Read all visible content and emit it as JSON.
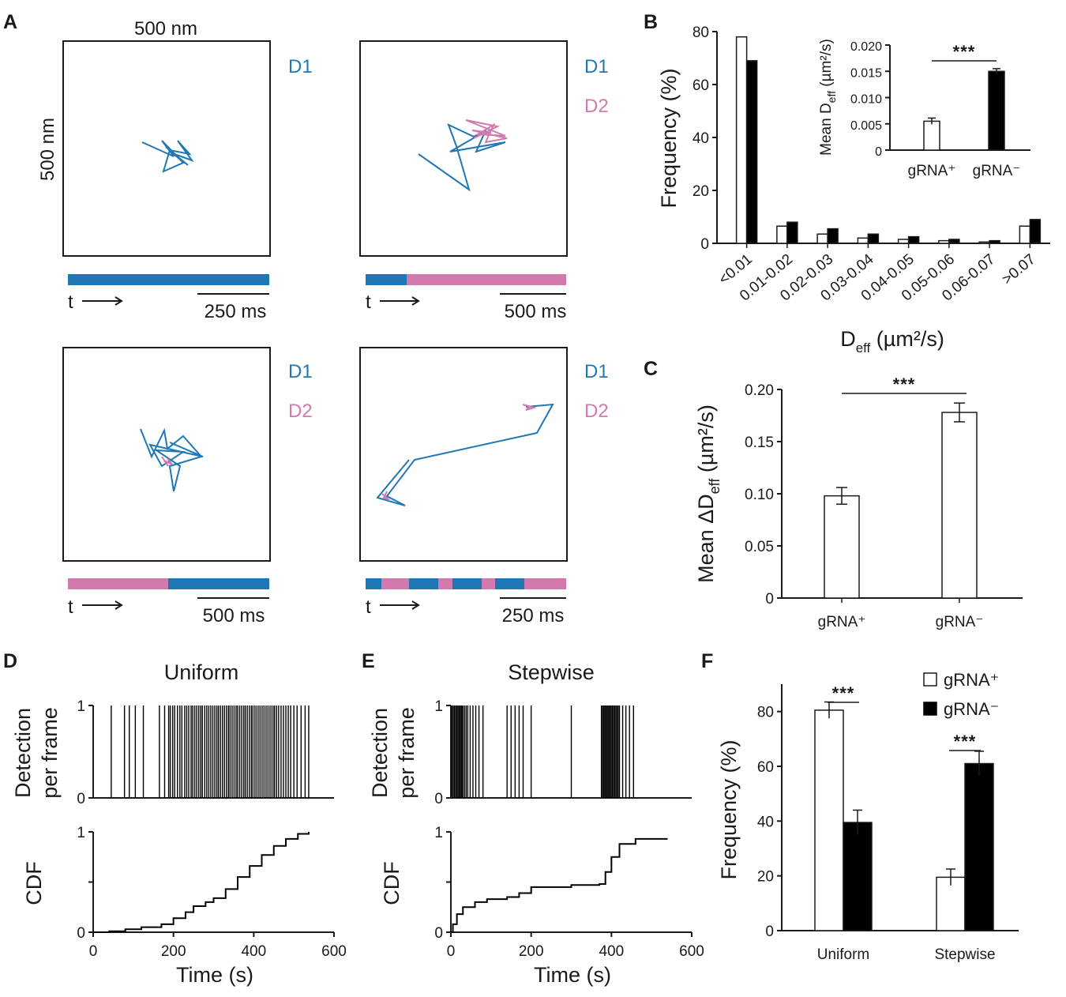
{
  "colors": {
    "d1": "#1f77b4",
    "d2": "#d279ad",
    "filled": "#000000",
    "open": "#ffffff",
    "axis": "#1a1a1a"
  },
  "panel_labels": [
    "A",
    "B",
    "C",
    "D",
    "E",
    "F"
  ],
  "panel_a": {
    "scale_horizontal": "500 nm",
    "scale_vertical": "500 nm",
    "time_label": "t",
    "tracks": [
      {
        "states": [
          "D1"
        ],
        "time_scale": "250 ms",
        "timeline": [
          "D1"
        ]
      },
      {
        "states": [
          "D1",
          "D2"
        ],
        "time_scale": "500 ms",
        "timeline": [
          "D1",
          "D2"
        ]
      },
      {
        "states": [
          "D1",
          "D2"
        ],
        "time_scale": "500 ms",
        "timeline": [
          "D2",
          "D1"
        ]
      },
      {
        "states": [
          "D1",
          "D2"
        ],
        "time_scale": "250 ms",
        "timeline": [
          "D1",
          "D2",
          "D1",
          "D2",
          "D1",
          "D2",
          "D1",
          "D2"
        ]
      }
    ]
  },
  "chart_data": [
    {
      "panel": "B",
      "type": "bar",
      "xlabel": "D",
      "xlabel_sub": "eff",
      "xlabel_unit": " (µm²/s)",
      "ylabel": "Frequency (%)",
      "ylim": [
        0,
        80
      ],
      "yticks": [
        "0",
        "20",
        "40",
        "60",
        "80"
      ],
      "categories": [
        "<0.01",
        "0.01-0.02",
        "0.02-0.03",
        "0.03-0.04",
        "0.04-0.05",
        "0.05-0.06",
        "0.06-0.07",
        ">0.07"
      ],
      "series": [
        {
          "name": "gRNA+",
          "fill": "open",
          "values": [
            78,
            6.5,
            3.5,
            2,
            1.5,
            1,
            0.5,
            6.5
          ]
        },
        {
          "name": "gRNA−",
          "fill": "filled",
          "values": [
            69,
            8,
            5.5,
            3.5,
            2.5,
            1.5,
            1,
            9
          ]
        }
      ]
    },
    {
      "panel": "B-inset",
      "type": "bar",
      "ylabel": "Mean D",
      "ylabel_sub": "eff",
      "ylabel_unit": " (µm²/s)",
      "ylim": [
        0,
        0.02
      ],
      "yticks": [
        "0",
        "0.005",
        "0.010",
        "0.015",
        "0.020"
      ],
      "categories": [
        "gRNA⁺",
        "gRNA⁻"
      ],
      "values": [
        0.0055,
        0.015
      ],
      "errors": [
        0.0006,
        0.0005
      ],
      "fills": [
        "open",
        "filled"
      ],
      "significance": "***"
    },
    {
      "panel": "C",
      "type": "bar",
      "ylabel": "Mean ΔD",
      "ylabel_sub": "eff",
      "ylabel_unit": " (µm²/s)",
      "ylim": [
        0,
        0.2
      ],
      "yticks": [
        "0",
        "0.05",
        "0.10",
        "0.15",
        "0.20"
      ],
      "categories": [
        "gRNA⁺",
        "gRNA⁻"
      ],
      "values": [
        0.098,
        0.178
      ],
      "errors": [
        0.008,
        0.009
      ],
      "fills": [
        "open",
        "open"
      ],
      "significance": "***"
    },
    {
      "panel": "D",
      "title": "Uniform",
      "type": "line",
      "raster_ylabel": [
        "Detection",
        "per frame"
      ],
      "raster_yticks": [
        "0",
        "1"
      ],
      "cdf_ylabel": "CDF",
      "cdf_yticks": [
        "0",
        "1"
      ],
      "xlabel": "Time (s)",
      "xlim": [
        0,
        600
      ],
      "xticks": [
        "0",
        "200",
        "400",
        "600"
      ],
      "detections": [
        45,
        78,
        90,
        105,
        125,
        165,
        178,
        188,
        192,
        198,
        203,
        210,
        216,
        221,
        228,
        233,
        238,
        244,
        248,
        253,
        258,
        263,
        268,
        272,
        278,
        283,
        288,
        293,
        298,
        303,
        308,
        312,
        317,
        322,
        327,
        332,
        337,
        341,
        346,
        351,
        356,
        360,
        365,
        370,
        375,
        379,
        384,
        389,
        394,
        398,
        403,
        408,
        413,
        418,
        423,
        428,
        433,
        438,
        443,
        448,
        452,
        457,
        462,
        468,
        474,
        480,
        486,
        492,
        500,
        508,
        518,
        528,
        537
      ],
      "cdf": [
        [
          0,
          0
        ],
        [
          40,
          0.01
        ],
        [
          80,
          0.03
        ],
        [
          120,
          0.05
        ],
        [
          170,
          0.08
        ],
        [
          200,
          0.14
        ],
        [
          230,
          0.2
        ],
        [
          250,
          0.26
        ],
        [
          280,
          0.3
        ],
        [
          300,
          0.34
        ],
        [
          330,
          0.43
        ],
        [
          360,
          0.55
        ],
        [
          390,
          0.66
        ],
        [
          420,
          0.77
        ],
        [
          450,
          0.86
        ],
        [
          480,
          0.93
        ],
        [
          510,
          0.98
        ],
        [
          537,
          1.0
        ]
      ]
    },
    {
      "panel": "E",
      "title": "Stepwise",
      "type": "line",
      "raster_ylabel": [
        "Detection",
        "per frame"
      ],
      "raster_yticks": [
        "0",
        "1"
      ],
      "cdf_ylabel": "CDF",
      "cdf_yticks": [
        "0",
        "1"
      ],
      "xlabel": "Time (s)",
      "xlim": [
        0,
        600
      ],
      "xticks": [
        "0",
        "200",
        "400",
        "600"
      ],
      "detections": [
        3,
        6,
        9,
        12,
        15,
        18,
        21,
        24,
        27,
        30,
        34,
        38,
        42,
        48,
        55,
        62,
        70,
        80,
        140,
        150,
        160,
        170,
        180,
        200,
        300,
        375,
        378,
        381,
        384,
        387,
        390,
        393,
        396,
        399,
        402,
        405,
        408,
        411,
        414,
        417,
        420,
        428,
        436,
        445,
        455
      ],
      "cdf": [
        [
          0,
          0
        ],
        [
          5,
          0.08
        ],
        [
          15,
          0.18
        ],
        [
          30,
          0.25
        ],
        [
          60,
          0.3
        ],
        [
          90,
          0.33
        ],
        [
          140,
          0.35
        ],
        [
          170,
          0.39
        ],
        [
          200,
          0.45
        ],
        [
          300,
          0.47
        ],
        [
          370,
          0.48
        ],
        [
          385,
          0.6
        ],
        [
          400,
          0.75
        ],
        [
          420,
          0.88
        ],
        [
          460,
          0.93
        ],
        [
          540,
          0.93
        ]
      ]
    },
    {
      "panel": "F",
      "type": "bar",
      "ylabel": "Frequency (%)",
      "ylim": [
        0,
        90
      ],
      "yticks": [
        "0",
        "20",
        "40",
        "60",
        "80"
      ],
      "categories": [
        "Uniform",
        "Stepwise"
      ],
      "series": [
        {
          "name": "gRNA⁺",
          "fill": "open",
          "values": [
            80.5,
            19.5
          ],
          "errors": [
            3,
            3
          ]
        },
        {
          "name": "gRNA⁻",
          "fill": "filled",
          "values": [
            39.5,
            61
          ],
          "errors": [
            4.5,
            4.5
          ]
        }
      ],
      "significance": [
        "***",
        "***"
      ],
      "legend": "top-right"
    }
  ]
}
